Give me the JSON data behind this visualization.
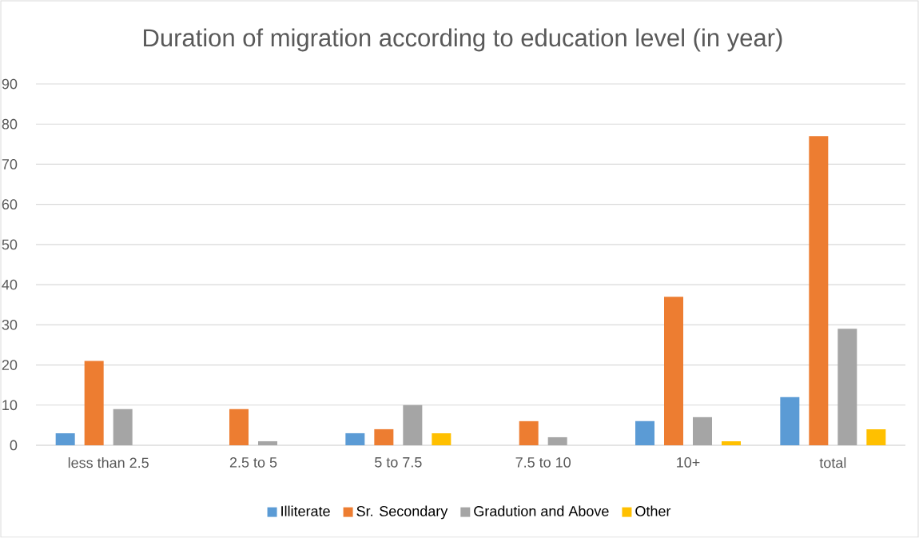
{
  "chart_data": {
    "type": "bar",
    "title": "Duration of migration according to education level (in year)",
    "categories": [
      "less than 2.5",
      "2.5 to 5",
      "5 to 7.5",
      "7.5 to 10",
      "10+",
      "total"
    ],
    "series": [
      {
        "name": "Illiterate",
        "color": "#5b9bd5",
        "values": [
          3,
          0,
          3,
          0,
          6,
          12
        ]
      },
      {
        "name": "Sr. Secondary",
        "color": "#ed7d31",
        "values": [
          21,
          9,
          4,
          6,
          37,
          77
        ]
      },
      {
        "name": "Gradution and Above",
        "color": "#a5a5a5",
        "values": [
          9,
          1,
          10,
          2,
          7,
          29
        ]
      },
      {
        "name": "Other",
        "color": "#ffc000",
        "values": [
          0,
          0,
          3,
          0,
          1,
          4
        ]
      }
    ],
    "ylim": [
      0,
      90
    ],
    "yticks": [
      0,
      10,
      20,
      30,
      40,
      50,
      60,
      70,
      80,
      90
    ],
    "grid": "y",
    "legend": "bottom"
  }
}
